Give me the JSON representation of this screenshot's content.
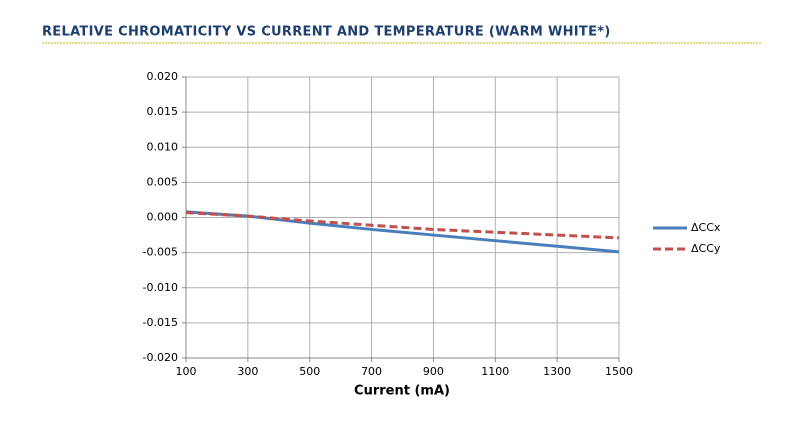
{
  "chart_data": {
    "type": "line",
    "title": "RELATIVE CHROMATICITY VS CURRENT AND TEMPERATURE (WARM WHITE*)",
    "x_label": "Current (mA)",
    "x": [
      100,
      300,
      500,
      700,
      900,
      1100,
      1300,
      1500
    ],
    "series": [
      {
        "name": "ΔCCx",
        "color": "#4a7ebb",
        "line_style": "solid",
        "values": [
          0.0008,
          0.0002,
          -0.0008,
          -0.0017,
          -0.0025,
          -0.0033,
          -0.0041,
          -0.0049
        ]
      },
      {
        "name": "ΔCCy",
        "color": "#c0504d",
        "line_style": "dashed",
        "values": [
          0.0007,
          0.0002,
          -0.0005,
          -0.0011,
          -0.0017,
          -0.0021,
          -0.0025,
          -0.0029
        ]
      }
    ],
    "xlim": [
      100,
      1500
    ],
    "xticks": [
      100,
      300,
      500,
      700,
      900,
      1100,
      1300,
      1500
    ],
    "ylim": [
      -0.02,
      0.02
    ],
    "yticks": [
      {
        "value": -0.02,
        "label": "-0.020"
      },
      -0.015,
      {
        "value": -0.01,
        "label": "-0.010"
      },
      -0.005,
      {
        "value": 0,
        "label": "0.000"
      },
      0.005,
      {
        "value": 0.01,
        "label": "0.010"
      },
      0.015,
      {
        "value": 0.02,
        "label": "0.020"
      }
    ],
    "grid": true,
    "legend": "right"
  }
}
